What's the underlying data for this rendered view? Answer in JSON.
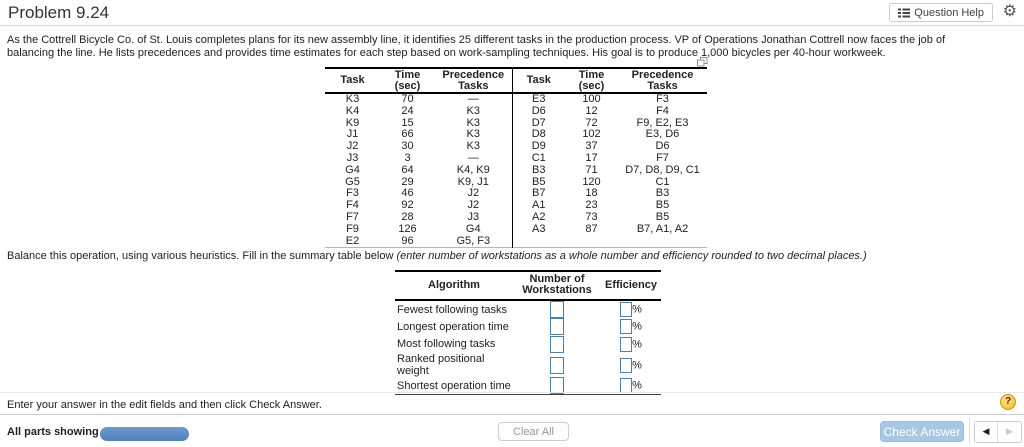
{
  "header": {
    "title": "Problem 9.24",
    "question_help": "Question Help"
  },
  "problem_statement": "As the Cottrell Bicycle Co. of St. Louis completes plans for its new assembly line, it identifies 25 different tasks in the production process. VP of Operations Jonathan Cottrell now faces the job of balancing the line. He lists precedences and provides time estimates for each step based on work-sampling techniques. His goal is to produce 1,000 bicycles per 40-hour workweek.",
  "task_table": {
    "col_headers": [
      "Task",
      "Time\n(sec)",
      "Precedence Tasks",
      "Task",
      "Time\n(sec)",
      "Precedence Tasks"
    ],
    "rows": [
      [
        "K3",
        "70",
        "—",
        "E3",
        "100",
        "F3"
      ],
      [
        "K4",
        "24",
        "K3",
        "D6",
        "12",
        "F4"
      ],
      [
        "K9",
        "15",
        "K3",
        "D7",
        "72",
        "F9, E2, E3"
      ],
      [
        "J1",
        "66",
        "K3",
        "D8",
        "102",
        "E3, D6"
      ],
      [
        "J2",
        "30",
        "K3",
        "D9",
        "37",
        "D6"
      ],
      [
        "J3",
        "3",
        "—",
        "C1",
        "17",
        "F7"
      ],
      [
        "G4",
        "64",
        "K4, K9",
        "B3",
        "71",
        "D7, D8, D9, C1"
      ],
      [
        "G5",
        "29",
        "K9, J1",
        "B5",
        "120",
        "C1"
      ],
      [
        "F3",
        "46",
        "J2",
        "B7",
        "18",
        "B3"
      ],
      [
        "F4",
        "92",
        "J2",
        "A1",
        "23",
        "B5"
      ],
      [
        "F7",
        "28",
        "J3",
        "A2",
        "73",
        "B5"
      ],
      [
        "F9",
        "126",
        "G4",
        "A3",
        "87",
        "B7, A1, A2"
      ],
      [
        "E2",
        "96",
        "G5, F3",
        "",
        "",
        ""
      ]
    ]
  },
  "instruction": {
    "normal": "Balance this operation, using various heuristics. Fill in the summary table below ",
    "italic": "(enter number of workstations as a whole number and efficiency rounded to two decimal places.)"
  },
  "summary_table": {
    "col_headers": [
      "Algorithm",
      "Number of\nWorkstations",
      "Efficiency"
    ],
    "percent": "%",
    "rows": [
      {
        "algorithm": "Fewest following tasks",
        "workstations_value": "",
        "efficiency_value": ""
      },
      {
        "algorithm": "Longest operation time",
        "workstations_value": "",
        "efficiency_value": ""
      },
      {
        "algorithm": "Most following tasks",
        "workstations_value": "",
        "efficiency_value": ""
      },
      {
        "algorithm": "Ranked positional weight",
        "workstations_value": "",
        "efficiency_value": ""
      },
      {
        "algorithm": "Shortest operation time",
        "workstations_value": "",
        "efficiency_value": ""
      }
    ]
  },
  "answer_prompt": "Enter your answer in the edit fields and then click Check Answer.",
  "footer": {
    "all_parts_label": "All parts showing",
    "clear_all_label": "Clear All",
    "check_answer_label": "Check Answer",
    "help_icon": "?",
    "prev_arrow": "◀",
    "next_arrow": "▶"
  },
  "colors": {
    "progress_blue": "#5d8ec6",
    "check_answer_bg": "#a9c6e3",
    "input_border_blue": "#4e81aa",
    "help_circle_gold": "#f0b929"
  }
}
